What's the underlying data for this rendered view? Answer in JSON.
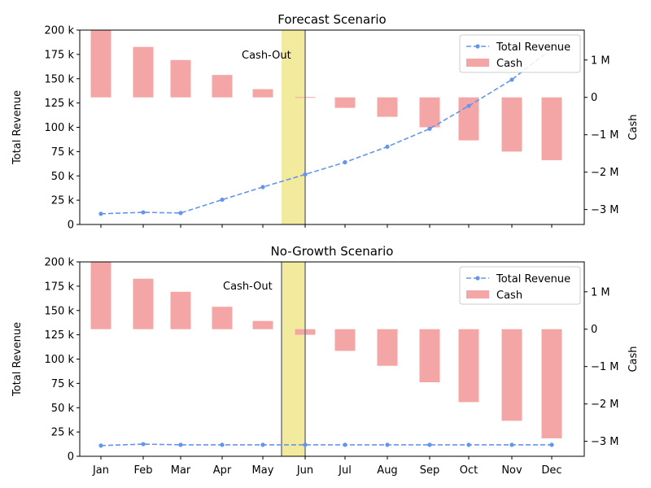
{
  "chart_data": [
    {
      "type": "bar+line",
      "title": "Forecast Scenario",
      "categories": [
        "Jan",
        "Feb",
        "Mar",
        "Apr",
        "May",
        "Jun",
        "Jul",
        "Aug",
        "Sep",
        "Oct",
        "Nov",
        "Dec"
      ],
      "x_tick_labels_visible": false,
      "ylabel": "Total Revenue",
      "y2label": "Cash",
      "ylim": [
        0,
        200000
      ],
      "y_ticks": [
        0,
        25000,
        50000,
        75000,
        100000,
        125000,
        150000,
        175000,
        200000
      ],
      "y_tick_labels": [
        "0",
        "25 k",
        "50 k",
        "75 k",
        "100 k",
        "125 k",
        "150 k",
        "175 k",
        "200 k"
      ],
      "y2lim": [
        -3.4,
        1.8
      ],
      "y2_ticks": [
        -3,
        -2,
        -1,
        0,
        1
      ],
      "y2_tick_labels": [
        "−3 M",
        "−2 M",
        "−1 M",
        "0",
        "1 M"
      ],
      "series": [
        {
          "name": "Total Revenue",
          "kind": "line",
          "axis": "left",
          "color": "#6495ed",
          "values": [
            11000,
            12500,
            11800,
            25500,
            38500,
            51500,
            64000,
            80000,
            98500,
            122000,
            149000,
            181000
          ]
        },
        {
          "name": "Cash",
          "kind": "bar",
          "axis": "right",
          "unit": "M",
          "color": "#f4a6a6",
          "values": [
            1.8,
            1.35,
            1.0,
            0.6,
            0.22,
            0.01,
            -0.28,
            -0.52,
            -0.8,
            -1.15,
            -1.45,
            -1.68
          ]
        }
      ],
      "cash_out": {
        "label": "Cash-Out",
        "month": "Jun",
        "band_color": "#f0e68c"
      },
      "legend": "top-right",
      "grid": false
    },
    {
      "type": "bar+line",
      "title": "No-Growth Scenario",
      "categories": [
        "Jan",
        "Feb",
        "Mar",
        "Apr",
        "May",
        "Jun",
        "Jul",
        "Aug",
        "Sep",
        "Oct",
        "Nov",
        "Dec"
      ],
      "x_tick_labels_visible": true,
      "ylabel": "Total Revenue",
      "y2label": "Cash",
      "ylim": [
        0,
        200000
      ],
      "y_ticks": [
        0,
        25000,
        50000,
        75000,
        100000,
        125000,
        150000,
        175000,
        200000
      ],
      "y_tick_labels": [
        "0",
        "25 k",
        "50 k",
        "75 k",
        "100 k",
        "125 k",
        "150 k",
        "175 k",
        "200 k"
      ],
      "y2lim": [
        -3.4,
        1.8
      ],
      "y2_ticks": [
        -3,
        -2,
        -1,
        0,
        1
      ],
      "y2_tick_labels": [
        "−3 M",
        "−2 M",
        "−1 M",
        "0",
        "1 M"
      ],
      "series": [
        {
          "name": "Total Revenue",
          "kind": "line",
          "axis": "left",
          "color": "#6495ed",
          "values": [
            11000,
            12500,
            11800,
            11800,
            11800,
            11800,
            11800,
            11800,
            11800,
            11800,
            11800,
            11800
          ]
        },
        {
          "name": "Cash",
          "kind": "bar",
          "axis": "right",
          "unit": "M",
          "color": "#f4a6a6",
          "values": [
            1.8,
            1.35,
            1.0,
            0.6,
            0.22,
            -0.15,
            -0.58,
            -0.98,
            -1.42,
            -1.95,
            -2.45,
            -2.92
          ]
        }
      ],
      "cash_out": {
        "label": "Cash-Out",
        "month": "Jun",
        "band_color": "#f0e68c"
      },
      "legend": "top-right",
      "grid": false
    }
  ]
}
